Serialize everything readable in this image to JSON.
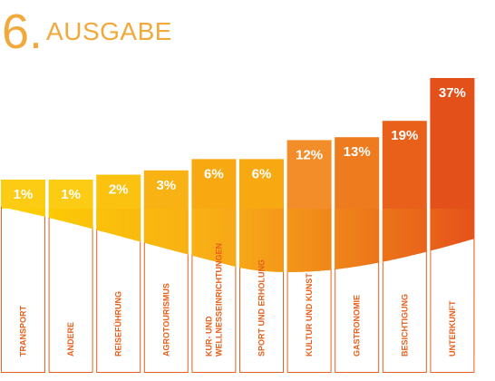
{
  "header": {
    "number": "6.",
    "title": "AUSGABE"
  },
  "chart_data": {
    "type": "bar",
    "title": "6. AUSGABE",
    "categories": [
      "TRANSPORT",
      "ANDERE",
      "REISEFÜHRUNG",
      "AGROTOURISMUS",
      [
        "KUR- UND",
        "WELLNESSEINRICHTUNGEN"
      ],
      "SPORT UND ERHOLUNG",
      "KULTUR UND KUNST",
      "GASTRONOMIE",
      "BESICHTIGUNG",
      "UNTERKUNFT"
    ],
    "values": [
      1,
      1,
      2,
      3,
      6,
      6,
      12,
      13,
      19,
      37
    ],
    "value_labels": [
      "1%",
      "1%",
      "2%",
      "3%",
      "6%",
      "6%",
      "12%",
      "13%",
      "19%",
      "37%"
    ],
    "colors": [
      "#fccb14",
      "#fccb14",
      "#fbc20f",
      "#f9b214",
      "#f8a912",
      "#f8a912",
      "#f28d2a",
      "#ee7b1e",
      "#e9601a",
      "#e4501a"
    ],
    "curve_colors": {
      "start": "#fdd200",
      "mid": "#f7a818",
      "end": "#e5521b"
    },
    "outline_color": "#e8601c"
  }
}
